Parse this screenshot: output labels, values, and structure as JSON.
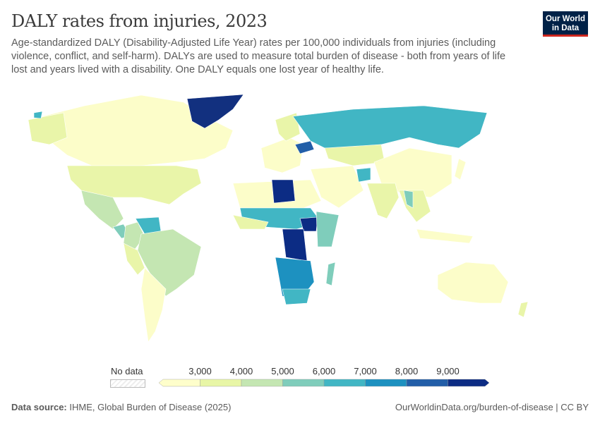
{
  "header": {
    "title": "DALY rates from injuries, 2023",
    "subtitle": "Age-standardized DALY (Disability-Adjusted Life Year) rates per 100,000 individuals from injuries (including violence, conflict, and self-harm). DALYs are used to measure total burden of disease - both from years of life lost and years lived with a disability. One DALY equals one lost year of healthy life.",
    "logo": "Our World in Data"
  },
  "legend": {
    "no_data": "No data",
    "ticks": [
      "3,000",
      "4,000",
      "5,000",
      "6,000",
      "7,000",
      "8,000",
      "9,000"
    ],
    "colors": [
      "#fefecb",
      "#e8f6a6",
      "#c4e6b2",
      "#7fcdbb",
      "#41b6c4",
      "#1d91c0",
      "#225ea8",
      "#0c2c84"
    ]
  },
  "footer": {
    "source_label": "Data source:",
    "source": "IHME, Global Burden of Disease (2025)",
    "url": "OurWorldinData.org/burden-of-disease | CC BY"
  }
}
